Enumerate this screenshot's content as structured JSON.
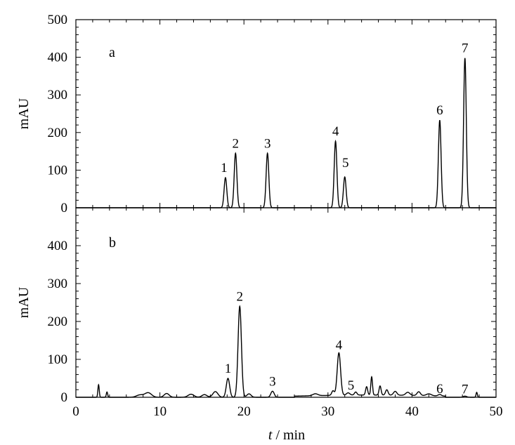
{
  "chart_data": [
    {
      "type": "line",
      "panel_label": "a",
      "ylabel": "mAU",
      "xlim": [
        0,
        50
      ],
      "ylim": [
        0,
        500
      ],
      "x_ticks": [
        0,
        10,
        20,
        30,
        40,
        50
      ],
      "y_ticks": [
        0,
        100,
        200,
        300,
        400,
        500
      ],
      "grid": false,
      "peaks": [
        {
          "label": "1",
          "x": 17.8,
          "y": 80
        },
        {
          "label": "2",
          "x": 19.0,
          "y": 145
        },
        {
          "label": "3",
          "x": 22.8,
          "y": 145
        },
        {
          "label": "4",
          "x": 30.9,
          "y": 177
        },
        {
          "label": "5",
          "x": 32.0,
          "y": 82
        },
        {
          "label": "6",
          "x": 43.3,
          "y": 233
        },
        {
          "label": "7",
          "x": 46.3,
          "y": 398
        }
      ],
      "minor_features": []
    },
    {
      "type": "line",
      "panel_label": "b",
      "xlabel_var": "t",
      "xlabel_rest": " / min",
      "ylabel": "mAU",
      "xlim": [
        0,
        50
      ],
      "ylim": [
        0,
        500
      ],
      "x_ticks": [
        0,
        10,
        20,
        30,
        40,
        50
      ],
      "y_ticks": [
        0,
        100,
        200,
        300,
        400
      ],
      "grid": false,
      "peaks": [
        {
          "label": "1",
          "x": 18.1,
          "y": 50
        },
        {
          "label": "2",
          "x": 19.5,
          "y": 240
        },
        {
          "label": "3",
          "x": 23.4,
          "y": 16
        },
        {
          "label": "4",
          "x": 31.3,
          "y": 112
        },
        {
          "label": "5",
          "x": 32.4,
          "y": 6
        },
        {
          "label": "6",
          "x": 43.3,
          "y": 4
        },
        {
          "label": "7",
          "x": 46.3,
          "y": 3
        }
      ],
      "minor_features": [
        {
          "x": 2.7,
          "y": 33,
          "w": 0.08
        },
        {
          "x": 3.7,
          "y": 14,
          "w": 0.08
        },
        {
          "x": 7.6,
          "y": 6,
          "w": 0.4
        },
        {
          "x": 8.6,
          "y": 12,
          "w": 0.4
        },
        {
          "x": 10.8,
          "y": 10,
          "w": 0.3
        },
        {
          "x": 13.7,
          "y": 8,
          "w": 0.35
        },
        {
          "x": 15.3,
          "y": 7,
          "w": 0.3
        },
        {
          "x": 16.6,
          "y": 15,
          "w": 0.3
        },
        {
          "x": 20.6,
          "y": 9,
          "w": 0.25
        },
        {
          "x": 28.5,
          "y": 5,
          "w": 0.3
        },
        {
          "x": 30.6,
          "y": 12,
          "w": 0.15
        },
        {
          "x": 33.3,
          "y": 8,
          "w": 0.15
        },
        {
          "x": 34.6,
          "y": 22,
          "w": 0.12
        },
        {
          "x": 35.2,
          "y": 48,
          "w": 0.1
        },
        {
          "x": 36.2,
          "y": 24,
          "w": 0.12
        },
        {
          "x": 37.0,
          "y": 14,
          "w": 0.15
        },
        {
          "x": 38.0,
          "y": 10,
          "w": 0.2
        },
        {
          "x": 39.5,
          "y": 8,
          "w": 0.25
        },
        {
          "x": 40.8,
          "y": 10,
          "w": 0.2
        },
        {
          "x": 42.0,
          "y": 5,
          "w": 0.3
        },
        {
          "x": 47.7,
          "y": 13,
          "w": 0.08
        }
      ]
    }
  ]
}
